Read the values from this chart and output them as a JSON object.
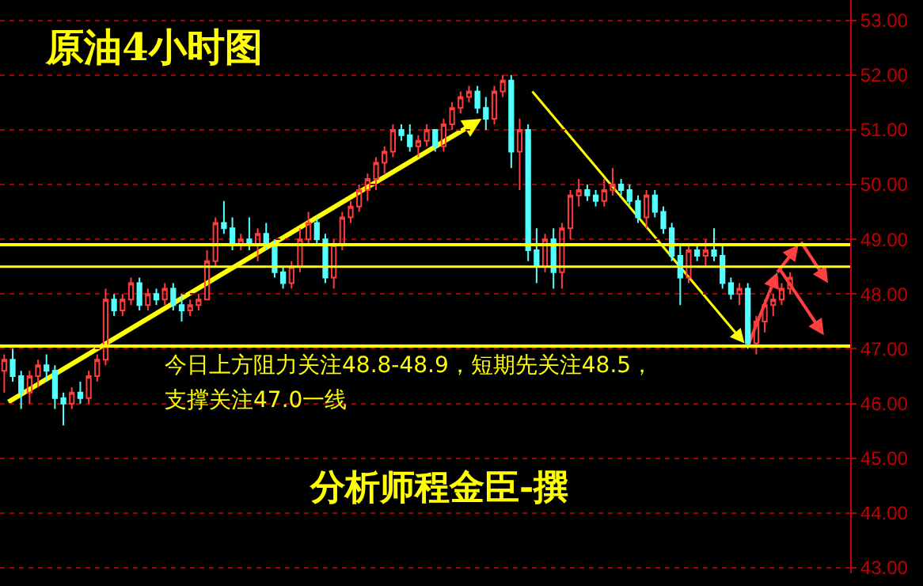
{
  "chart_data": {
    "type": "candlestick",
    "title": "原油4小时图",
    "annotations": [
      "今日上方阻力关注48.8-48.9，短期先关注48.5，",
      "支撑关注47.0一线",
      "分析师程金臣-撰"
    ],
    "categories": [
      null,
      null,
      null,
      null,
      null,
      null,
      null,
      null,
      null,
      null,
      null,
      null,
      null,
      null,
      null,
      null,
      null,
      null,
      null,
      null,
      null,
      null,
      null,
      null,
      null,
      null,
      null,
      null,
      null,
      null,
      null,
      null,
      null,
      null,
      null,
      null,
      null,
      null,
      null,
      null,
      null,
      null,
      null,
      null,
      null,
      null,
      null,
      null,
      null,
      null,
      null,
      null,
      null,
      null,
      null,
      null,
      null,
      null,
      null,
      null,
      null,
      null,
      null,
      null,
      null,
      null,
      null,
      null,
      null,
      null,
      null,
      null,
      null,
      null,
      null,
      null,
      null,
      null,
      null,
      null,
      null,
      null,
      null,
      null,
      null,
      null,
      null,
      null,
      null,
      null,
      null,
      null,
      null,
      null
    ],
    "ohlc": [
      [
        46.6,
        46.9,
        46.2,
        46.8
      ],
      [
        46.8,
        47.0,
        46.4,
        46.5
      ],
      [
        46.5,
        46.6,
        45.9,
        46.2
      ],
      [
        46.2,
        46.6,
        46.0,
        46.5
      ],
      [
        46.5,
        46.8,
        46.3,
        46.7
      ],
      [
        46.7,
        46.9,
        46.4,
        46.6
      ],
      [
        46.6,
        46.7,
        45.9,
        46.1
      ],
      [
        46.1,
        46.2,
        45.6,
        46.0
      ],
      [
        46.0,
        46.3,
        45.9,
        46.2
      ],
      [
        46.2,
        46.4,
        46.0,
        46.1
      ],
      [
        46.1,
        46.6,
        46.0,
        46.5
      ],
      [
        46.5,
        46.9,
        46.4,
        46.8
      ],
      [
        46.8,
        48.1,
        46.7,
        47.9
      ],
      [
        47.9,
        48.0,
        47.6,
        47.7
      ],
      [
        47.7,
        48.0,
        47.6,
        47.9
      ],
      [
        47.9,
        48.3,
        47.8,
        48.2
      ],
      [
        48.2,
        48.3,
        47.7,
        47.8
      ],
      [
        47.8,
        48.1,
        47.7,
        48.0
      ],
      [
        48.0,
        48.1,
        47.8,
        47.9
      ],
      [
        47.9,
        48.2,
        47.8,
        48.1
      ],
      [
        48.1,
        48.2,
        47.7,
        47.8
      ],
      [
        47.8,
        48.0,
        47.5,
        47.7
      ],
      [
        47.7,
        47.9,
        47.6,
        47.8
      ],
      [
        47.8,
        48.0,
        47.7,
        47.9
      ],
      [
        47.9,
        48.8,
        47.9,
        48.6
      ],
      [
        48.6,
        49.4,
        48.5,
        49.3
      ],
      [
        49.3,
        49.7,
        49.1,
        49.2
      ],
      [
        49.2,
        49.4,
        48.8,
        48.9
      ],
      [
        48.9,
        49.1,
        48.8,
        49.0
      ],
      [
        49.0,
        49.4,
        48.8,
        48.9
      ],
      [
        48.9,
        49.2,
        48.6,
        49.1
      ],
      [
        49.1,
        49.3,
        48.8,
        48.9
      ],
      [
        48.9,
        49.0,
        48.3,
        48.4
      ],
      [
        48.4,
        48.5,
        48.1,
        48.2
      ],
      [
        48.2,
        48.6,
        48.1,
        48.5
      ],
      [
        48.5,
        49.2,
        48.4,
        49.0
      ],
      [
        49.0,
        49.5,
        48.9,
        49.3
      ],
      [
        49.3,
        49.4,
        48.9,
        49.0
      ],
      [
        49.0,
        49.1,
        48.2,
        48.3
      ],
      [
        48.3,
        49.0,
        48.1,
        48.9
      ],
      [
        48.9,
        49.5,
        48.8,
        49.4
      ],
      [
        49.4,
        49.7,
        49.3,
        49.6
      ],
      [
        49.6,
        50.0,
        49.5,
        49.9
      ],
      [
        49.9,
        50.2,
        49.7,
        50.1
      ],
      [
        50.1,
        50.5,
        49.9,
        50.4
      ],
      [
        50.4,
        50.7,
        50.2,
        50.6
      ],
      [
        50.6,
        51.1,
        50.5,
        51.0
      ],
      [
        51.0,
        51.1,
        50.8,
        50.9
      ],
      [
        50.9,
        51.1,
        50.6,
        50.7
      ],
      [
        50.7,
        50.9,
        50.5,
        50.8
      ],
      [
        50.8,
        51.1,
        50.7,
        51.0
      ],
      [
        51.0,
        51.0,
        50.6,
        50.7
      ],
      [
        50.7,
        51.2,
        50.6,
        51.1
      ],
      [
        51.1,
        51.5,
        51.0,
        51.4
      ],
      [
        51.4,
        51.7,
        51.3,
        51.6
      ],
      [
        51.6,
        51.8,
        51.5,
        51.7
      ],
      [
        51.7,
        51.8,
        51.3,
        51.4
      ],
      [
        51.4,
        51.6,
        51.0,
        51.2
      ],
      [
        51.2,
        51.8,
        51.1,
        51.7
      ],
      [
        51.7,
        52.0,
        51.6,
        51.9
      ],
      [
        51.9,
        52.0,
        50.3,
        50.6
      ],
      [
        50.6,
        51.2,
        49.9,
        51.0
      ],
      [
        51.0,
        51.1,
        48.6,
        48.8
      ],
      [
        48.8,
        49.2,
        48.2,
        48.5
      ],
      [
        48.5,
        49.1,
        48.4,
        49.0
      ],
      [
        49.0,
        49.2,
        48.1,
        48.4
      ],
      [
        48.4,
        49.3,
        48.1,
        49.2
      ],
      [
        49.2,
        49.9,
        49.0,
        49.8
      ],
      [
        49.8,
        50.1,
        49.6,
        49.9
      ],
      [
        49.9,
        50.0,
        49.7,
        49.8
      ],
      [
        49.8,
        49.9,
        49.6,
        49.7
      ],
      [
        49.7,
        50.1,
        49.6,
        49.9
      ],
      [
        49.9,
        50.3,
        49.8,
        50.0
      ],
      [
        50.0,
        50.1,
        49.8,
        49.9
      ],
      [
        49.9,
        50.0,
        49.6,
        49.7
      ],
      [
        49.7,
        49.8,
        49.3,
        49.4
      ],
      [
        49.4,
        49.9,
        49.2,
        49.8
      ],
      [
        49.8,
        49.9,
        49.4,
        49.5
      ],
      [
        49.5,
        49.6,
        49.1,
        49.2
      ],
      [
        49.2,
        49.3,
        48.6,
        48.7
      ],
      [
        48.7,
        48.9,
        47.8,
        48.3
      ],
      [
        48.3,
        48.9,
        48.2,
        48.8
      ],
      [
        48.8,
        48.9,
        48.6,
        48.7
      ],
      [
        48.7,
        49.0,
        48.5,
        48.8
      ],
      [
        48.8,
        49.2,
        48.6,
        48.7
      ],
      [
        48.7,
        48.9,
        48.1,
        48.2
      ],
      [
        48.2,
        48.3,
        47.9,
        48.0
      ],
      [
        48.0,
        48.2,
        47.8,
        48.1
      ],
      [
        48.1,
        48.2,
        47.0,
        47.1
      ],
      [
        47.1,
        47.6,
        46.9,
        47.5
      ],
      [
        47.5,
        47.9,
        47.3,
        47.8
      ],
      [
        47.8,
        48.0,
        47.6,
        47.9
      ],
      [
        47.9,
        48.2,
        47.8,
        48.1
      ],
      [
        48.1,
        48.4,
        48.0,
        48.3
      ]
    ],
    "ylim": [
      42.9,
      53.37
    ],
    "yticks": [
      {
        "value": 43,
        "label": "43.00"
      },
      {
        "value": 44,
        "label": "44.00"
      },
      {
        "value": 45,
        "label": "45.00"
      },
      {
        "value": 46,
        "label": "46.00"
      },
      {
        "value": 47,
        "label": "47.00"
      },
      {
        "value": 48,
        "label": "48.00"
      },
      {
        "value": 49,
        "label": "49.00"
      },
      {
        "value": 50,
        "label": "50.00"
      },
      {
        "value": 51,
        "label": "51.00"
      },
      {
        "value": 52,
        "label": "52.00"
      },
      {
        "value": 53,
        "label": "53.00"
      }
    ],
    "grid": "y",
    "tick_labels": "y",
    "ref_lines": [
      {
        "axis": "y",
        "value": 48.9,
        "color": "#ffff00"
      },
      {
        "axis": "y",
        "value": 47.05,
        "color": "#ffff00"
      },
      {
        "axis": "y",
        "value": 48.5,
        "color": "#ffff00"
      }
    ]
  }
}
